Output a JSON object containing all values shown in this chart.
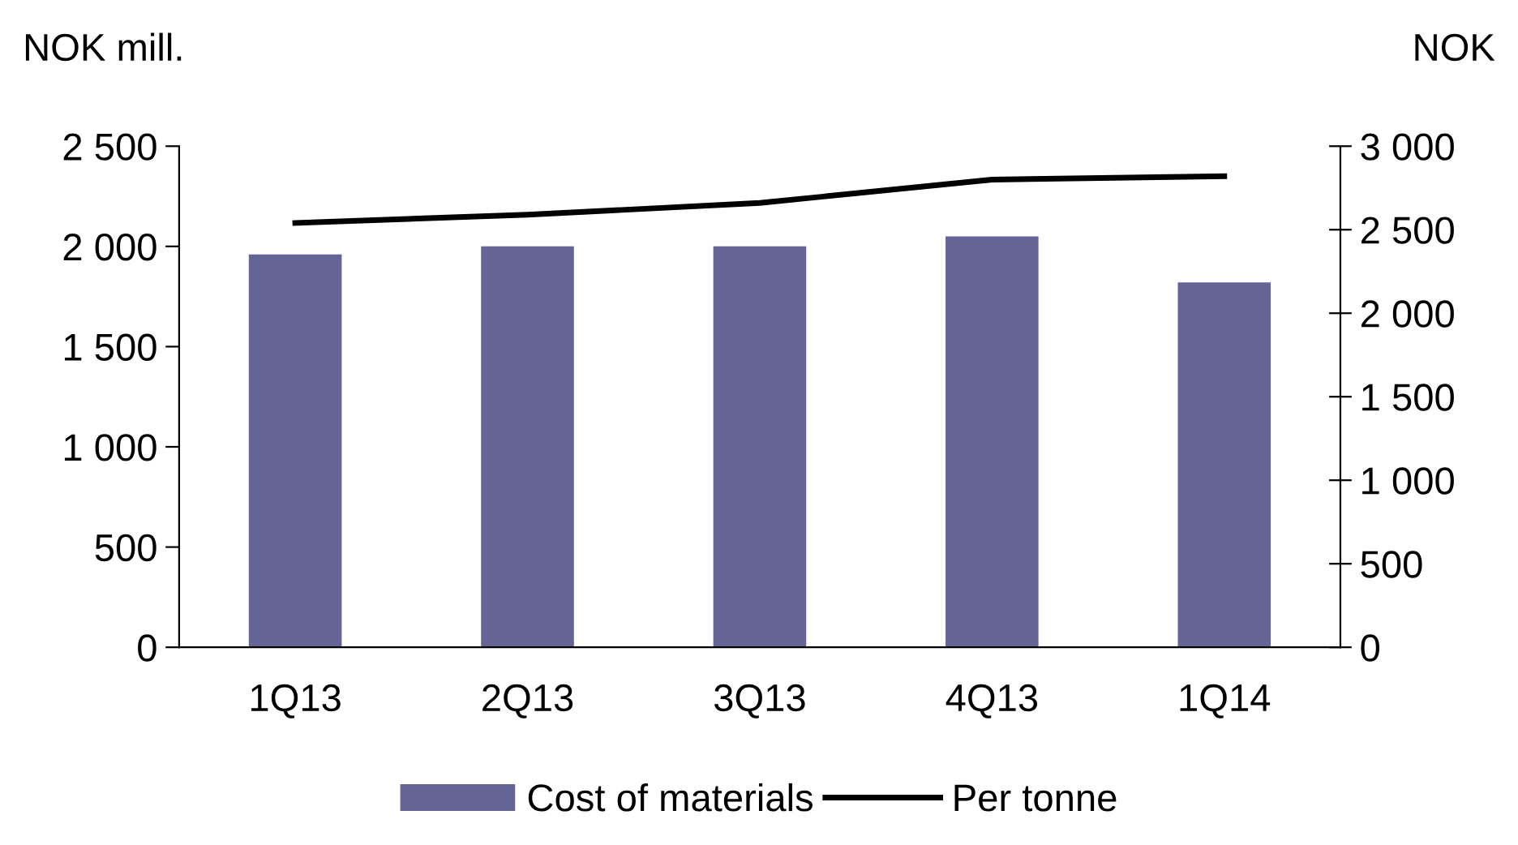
{
  "chart_data": {
    "type": "bar",
    "ylabel": "NOK mill.",
    "y2label": "NOK",
    "categories": [
      "1Q13",
      "2Q13",
      "3Q13",
      "4Q13",
      "1Q14"
    ],
    "series": [
      {
        "name": "Cost of materials",
        "color": "#646497",
        "values": [
          1960,
          2000,
          2000,
          2050,
          1820
        ]
      },
      {
        "name": "Per tonne",
        "type": "line",
        "axis": "y2",
        "color": "#000000",
        "values": [
          2540,
          2590,
          2660,
          2800,
          2820
        ]
      }
    ],
    "ylim": [
      0,
      2500
    ],
    "yticks": [
      0,
      500,
      {
        "value": 1000,
        "label": "1 000"
      },
      {
        "value": 1500,
        "label": "1 500"
      },
      {
        "value": 2000,
        "label": "2 000"
      },
      {
        "value": 2500,
        "label": "2 500"
      }
    ],
    "y2lim": [
      0,
      3000
    ],
    "y2ticks": [
      0,
      500,
      {
        "value": 1000,
        "label": "1 000"
      },
      {
        "value": 1500,
        "label": "1 500"
      },
      {
        "value": 2000,
        "label": "2 000"
      },
      {
        "value": 2500,
        "label": "2 500"
      },
      {
        "value": 3000,
        "label": "3 000"
      }
    ],
    "grid": false,
    "legend": "bottom",
    "marker": "none",
    "line_style": "solid"
  }
}
